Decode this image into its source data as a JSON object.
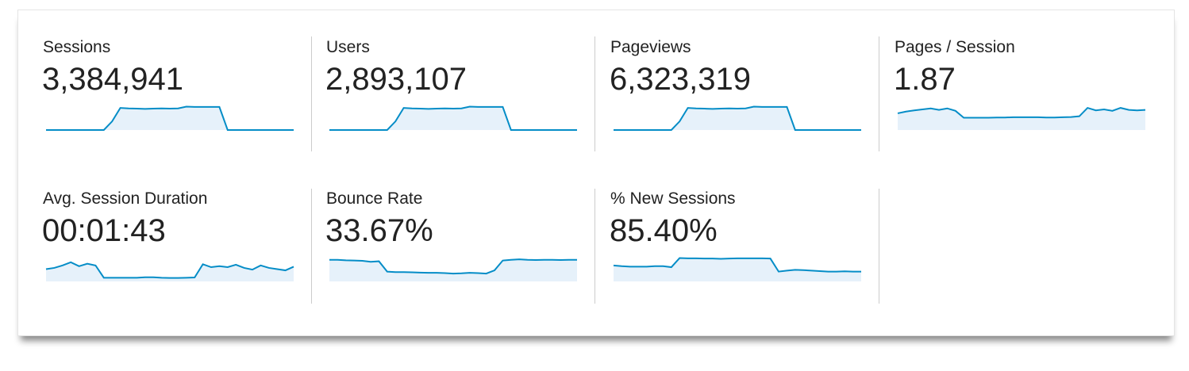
{
  "colors": {
    "line": "#058dc7",
    "fill": "#e6f1fa"
  },
  "metrics": [
    {
      "label": "Sessions",
      "value": "3,384,941",
      "sparkline": [
        0,
        0,
        0,
        0,
        0,
        0,
        0,
        0,
        35,
        90,
        88,
        87,
        86,
        87,
        88,
        87,
        88,
        95,
        94,
        94,
        94,
        94,
        0,
        0,
        0,
        0,
        0,
        0,
        0,
        0,
        0
      ]
    },
    {
      "label": "Users",
      "value": "2,893,107",
      "sparkline": [
        0,
        0,
        0,
        0,
        0,
        0,
        0,
        0,
        35,
        90,
        88,
        87,
        86,
        87,
        88,
        87,
        88,
        95,
        94,
        94,
        94,
        94,
        0,
        0,
        0,
        0,
        0,
        0,
        0,
        0,
        0
      ]
    },
    {
      "label": "Pageviews",
      "value": "6,323,319",
      "sparkline": [
        0,
        0,
        0,
        0,
        0,
        0,
        0,
        0,
        35,
        90,
        88,
        87,
        86,
        87,
        88,
        87,
        88,
        95,
        94,
        94,
        94,
        94,
        0,
        0,
        0,
        0,
        0,
        0,
        0,
        0,
        0
      ]
    },
    {
      "label": "Pages / Session",
      "value": "1.87",
      "sparkline": [
        68,
        75,
        80,
        84,
        88,
        82,
        88,
        78,
        50,
        50,
        50,
        50,
        51,
        51,
        52,
        52,
        52,
        52,
        51,
        51,
        52,
        53,
        56,
        90,
        80,
        84,
        78,
        90,
        82,
        80,
        82
      ]
    },
    {
      "label": "Avg. Session Duration",
      "value": "00:01:43",
      "sparkline": [
        50,
        55,
        65,
        78,
        62,
        72,
        65,
        15,
        15,
        15,
        15,
        15,
        17,
        17,
        15,
        14,
        14,
        15,
        16,
        70,
        58,
        62,
        58,
        68,
        55,
        48,
        65,
        55,
        50,
        45,
        60
      ]
    },
    {
      "label": "Bounce Rate",
      "value": "33.67%",
      "sparkline": [
        88,
        88,
        86,
        85,
        84,
        80,
        82,
        40,
        38,
        38,
        37,
        36,
        35,
        35,
        34,
        32,
        33,
        35,
        34,
        32,
        45,
        85,
        88,
        90,
        88,
        87,
        88,
        88,
        87,
        88,
        88
      ]
    },
    {
      "label": "% New Sessions",
      "value": "85.40%",
      "sparkline": [
        65,
        62,
        60,
        60,
        60,
        62,
        62,
        58,
        95,
        94,
        94,
        93,
        93,
        92,
        93,
        94,
        94,
        94,
        94,
        93,
        40,
        44,
        47,
        46,
        44,
        42,
        40,
        40,
        41,
        40,
        40
      ]
    }
  ]
}
